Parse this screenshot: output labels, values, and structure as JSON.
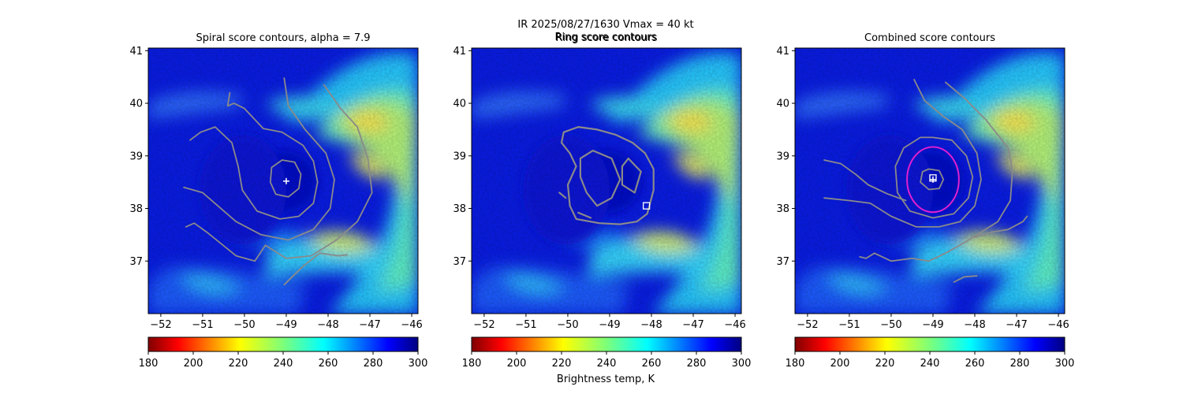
{
  "figure": {
    "suptitle_line1": "IR  2025/08/27/1630    Vmax = 40 kt",
    "suptitle_line2": "Ring score contours",
    "colorbar_label": "Brightness temp, K",
    "colormap": "jet reversed (low = dark red, high = dark blue)",
    "contour_color": "#8a8a8a",
    "ring_color": "#e11fd0",
    "marker_color": "#ffffff"
  },
  "chart_data": [
    {
      "type": "heatmap",
      "title": "Spiral score contours, alpha =  7.9",
      "xlim": [
        -52.3,
        -45.85
      ],
      "ylim": [
        36,
        41.05
      ],
      "xticks": [
        -52,
        -51,
        -50,
        -49,
        -48,
        -47,
        -46
      ],
      "yticks": [
        37,
        38,
        39,
        40,
        41
      ],
      "colorbar": {
        "min": 180,
        "max": 300,
        "ticks": [
          180,
          200,
          220,
          240,
          260,
          280,
          300
        ]
      },
      "marker": {
        "shape": "plus",
        "x": -49.0,
        "y": 38.52
      },
      "contours": [
        [
          [
            -49.1,
            38.92
          ],
          [
            -48.8,
            38.88
          ],
          [
            -48.65,
            38.65
          ],
          [
            -48.7,
            38.38
          ],
          [
            -48.95,
            38.22
          ],
          [
            -49.25,
            38.27
          ],
          [
            -49.38,
            38.5
          ],
          [
            -49.35,
            38.78
          ],
          [
            -49.1,
            38.92
          ]
        ],
        [
          [
            -50.35,
            40.2
          ],
          [
            -50.4,
            39.95
          ],
          [
            -50.25,
            40.0
          ],
          [
            -50.0,
            39.9
          ],
          [
            -49.55,
            39.52
          ],
          [
            -49.1,
            39.45
          ],
          [
            -48.6,
            39.2
          ],
          [
            -48.35,
            38.9
          ],
          [
            -48.25,
            38.5
          ],
          [
            -48.35,
            38.1
          ],
          [
            -48.7,
            37.85
          ],
          [
            -49.15,
            37.8
          ],
          [
            -49.7,
            37.95
          ],
          [
            -50.05,
            38.35
          ],
          [
            -50.15,
            38.8
          ],
          [
            -50.3,
            39.25
          ],
          [
            -50.7,
            39.55
          ],
          [
            -51.05,
            39.45
          ],
          [
            -51.3,
            39.3
          ]
        ],
        [
          [
            -49.05,
            40.48
          ],
          [
            -48.95,
            39.95
          ],
          [
            -48.55,
            39.5
          ],
          [
            -48.05,
            39.05
          ],
          [
            -47.85,
            38.55
          ],
          [
            -47.95,
            38.0
          ],
          [
            -48.35,
            37.6
          ],
          [
            -48.95,
            37.4
          ],
          [
            -49.6,
            37.5
          ],
          [
            -50.2,
            37.75
          ],
          [
            -51.0,
            38.3
          ],
          [
            -51.45,
            38.4
          ]
        ],
        [
          [
            -48.1,
            40.35
          ],
          [
            -47.7,
            39.9
          ],
          [
            -47.3,
            39.55
          ],
          [
            -47.05,
            38.95
          ],
          [
            -46.95,
            38.3
          ],
          [
            -47.3,
            37.75
          ],
          [
            -47.8,
            37.4
          ],
          [
            -48.4,
            37.1
          ],
          [
            -49.0,
            37.05
          ],
          [
            -49.5,
            37.3
          ],
          [
            -49.75,
            37.0
          ],
          [
            -50.2,
            37.1
          ],
          [
            -50.9,
            37.55
          ],
          [
            -51.2,
            37.72
          ],
          [
            -51.4,
            37.65
          ]
        ],
        [
          [
            -49.05,
            36.55
          ],
          [
            -48.6,
            36.9
          ],
          [
            -48.2,
            37.15
          ],
          [
            -47.75,
            37.1
          ],
          [
            -47.55,
            37.12
          ]
        ]
      ]
    },
    {
      "type": "heatmap",
      "title": "Ring score contours",
      "xlim": [
        -52.3,
        -45.85
      ],
      "ylim": [
        36,
        41.05
      ],
      "xticks": [
        -52,
        -51,
        -50,
        -49,
        -48,
        -47,
        -46
      ],
      "yticks": [
        37,
        38,
        39,
        40,
        41
      ],
      "colorbar": {
        "min": 180,
        "max": 300,
        "ticks": [
          180,
          200,
          220,
          240,
          260,
          280,
          300
        ]
      },
      "marker": {
        "shape": "square",
        "x": -48.12,
        "y": 38.05
      },
      "contours": [
        [
          [
            -50.1,
            39.45
          ],
          [
            -49.75,
            39.55
          ],
          [
            -49.3,
            39.5
          ],
          [
            -48.85,
            39.4
          ],
          [
            -48.45,
            39.25
          ],
          [
            -48.15,
            39.05
          ],
          [
            -47.95,
            38.75
          ],
          [
            -47.95,
            38.35
          ],
          [
            -48.1,
            37.9
          ],
          [
            -48.35,
            37.75
          ],
          [
            -48.75,
            37.7
          ],
          [
            -49.25,
            37.72
          ],
          [
            -49.8,
            37.8
          ],
          [
            -49.95,
            38.05
          ],
          [
            -50.0,
            38.45
          ],
          [
            -49.8,
            38.8
          ],
          [
            -49.95,
            39.05
          ],
          [
            -50.15,
            39.25
          ],
          [
            -50.1,
            39.45
          ]
        ],
        [
          [
            -49.7,
            38.95
          ],
          [
            -49.4,
            39.1
          ],
          [
            -48.95,
            38.95
          ],
          [
            -48.75,
            38.55
          ],
          [
            -48.95,
            38.2
          ],
          [
            -49.3,
            38.05
          ],
          [
            -49.55,
            38.3
          ],
          [
            -49.7,
            38.6
          ],
          [
            -49.7,
            38.95
          ]
        ],
        [
          [
            -48.55,
            38.95
          ],
          [
            -48.25,
            38.7
          ],
          [
            -48.4,
            38.3
          ],
          [
            -48.7,
            38.45
          ],
          [
            -48.7,
            38.8
          ],
          [
            -48.55,
            38.95
          ]
        ],
        [
          [
            -50.2,
            38.3
          ],
          [
            -50.05,
            38.2
          ]
        ],
        [
          [
            -49.75,
            37.92
          ],
          [
            -49.45,
            37.82
          ]
        ]
      ]
    },
    {
      "type": "heatmap",
      "title": "Combined score contours",
      "xlim": [
        -52.3,
        -45.85
      ],
      "ylim": [
        36,
        41.05
      ],
      "xticks": [
        -52,
        -51,
        -50,
        -49,
        -48,
        -47,
        -46
      ],
      "yticks": [
        37,
        38,
        39,
        40,
        41
      ],
      "colorbar": {
        "min": 180,
        "max": 300,
        "ticks": [
          180,
          200,
          220,
          240,
          260,
          280,
          300
        ]
      },
      "marker": {
        "shape": "square-plus",
        "x": -49.0,
        "y": 38.55
      },
      "ring": {
        "x": -49.0,
        "y": 38.55,
        "radius_deg": 0.62
      },
      "contours": [
        [
          [
            -49.1,
            38.75
          ],
          [
            -48.85,
            38.72
          ],
          [
            -48.75,
            38.55
          ],
          [
            -48.85,
            38.38
          ],
          [
            -49.1,
            38.36
          ],
          [
            -49.3,
            38.5
          ],
          [
            -49.25,
            38.7
          ],
          [
            -49.1,
            38.75
          ]
        ],
        [
          [
            -49.0,
            39.35
          ],
          [
            -48.55,
            39.3
          ],
          [
            -48.2,
            39.0
          ],
          [
            -48.05,
            38.6
          ],
          [
            -48.15,
            38.2
          ],
          [
            -48.5,
            37.9
          ],
          [
            -49.0,
            37.82
          ],
          [
            -49.55,
            37.95
          ],
          [
            -49.85,
            38.3
          ],
          [
            -49.9,
            38.8
          ],
          [
            -49.7,
            39.15
          ],
          [
            -49.3,
            39.35
          ],
          [
            -49.0,
            39.35
          ]
        ],
        [
          [
            -49.45,
            40.45
          ],
          [
            -49.2,
            40.05
          ],
          [
            -48.75,
            39.75
          ],
          [
            -48.3,
            39.5
          ],
          [
            -47.95,
            39.05
          ],
          [
            -47.85,
            38.55
          ],
          [
            -48.0,
            38.05
          ],
          [
            -48.35,
            37.75
          ],
          [
            -48.85,
            37.65
          ],
          [
            -49.4,
            37.65
          ],
          [
            -50.0,
            37.85
          ],
          [
            -50.5,
            38.1
          ],
          [
            -51.0,
            38.15
          ],
          [
            -51.6,
            38.2
          ]
        ],
        [
          [
            -48.7,
            40.4
          ],
          [
            -48.25,
            40.1
          ],
          [
            -47.75,
            39.7
          ],
          [
            -47.2,
            39.15
          ],
          [
            -47.1,
            38.7
          ],
          [
            -47.15,
            38.15
          ],
          [
            -47.45,
            37.75
          ],
          [
            -47.85,
            37.55
          ],
          [
            -48.25,
            37.35
          ],
          [
            -48.7,
            37.15
          ],
          [
            -49.1,
            37.0
          ],
          [
            -49.5,
            37.05
          ],
          [
            -50.0,
            37.0
          ],
          [
            -50.4,
            37.15
          ],
          [
            -50.6,
            37.05
          ],
          [
            -50.75,
            37.08
          ]
        ],
        [
          [
            -51.6,
            38.92
          ],
          [
            -51.2,
            38.85
          ],
          [
            -50.85,
            38.65
          ],
          [
            -50.55,
            38.45
          ],
          [
            -50.1,
            38.28
          ],
          [
            -49.65,
            38.15
          ]
        ],
        [
          [
            -48.5,
            36.6
          ],
          [
            -48.25,
            36.7
          ],
          [
            -47.95,
            36.72
          ]
        ],
        [
          [
            -48.0,
            37.45
          ],
          [
            -47.6,
            37.55
          ],
          [
            -47.2,
            37.6
          ],
          [
            -46.85,
            37.75
          ],
          [
            -46.75,
            37.85
          ]
        ]
      ]
    }
  ]
}
